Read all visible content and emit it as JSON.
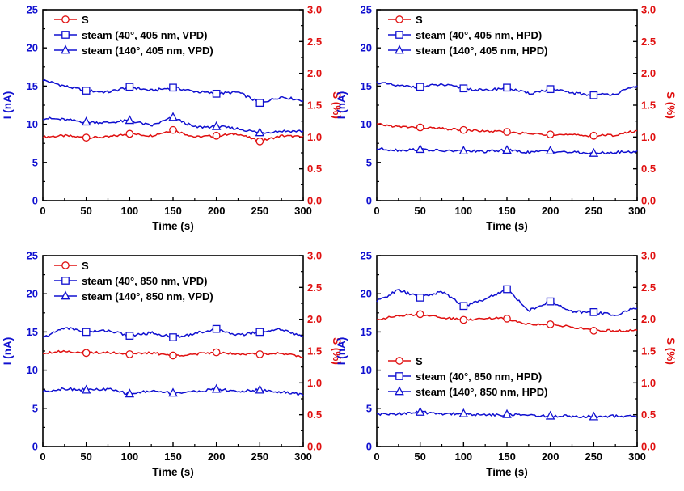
{
  "colors": {
    "axis": "#000000",
    "left_axis": "#1010d0",
    "right_axis": "#e01010",
    "red_series": "#e01010",
    "blue_series": "#1010d0"
  },
  "chart_data": [
    {
      "type": "line",
      "xlabel": "Time (s)",
      "ylabel_left": "I (nA)",
      "ylabel_right": "S (%)",
      "xlim": [
        0,
        300
      ],
      "ylim_left": [
        0,
        25
      ],
      "ylim_right": [
        0,
        3.0
      ],
      "x_ticks": [
        "0",
        "50",
        "100",
        "150",
        "200",
        "250",
        "300"
      ],
      "y_left_ticks": [
        "0",
        "5",
        "10",
        "15",
        "20",
        "25"
      ],
      "y_right_ticks": [
        "0.0",
        "0.5",
        "1.0",
        "1.5",
        "2.0",
        "2.5",
        "3.0"
      ],
      "legend_position": "top-left",
      "series": [
        {
          "name": "S",
          "axis": "right",
          "color": "#e01010",
          "marker": "circle",
          "x": [
            0,
            25,
            50,
            75,
            100,
            125,
            150,
            175,
            200,
            225,
            250,
            275,
            300
          ],
          "y": [
            1.0,
            1.02,
            0.99,
            1.0,
            1.05,
            1.02,
            1.11,
            1.0,
            1.02,
            1.05,
            0.93,
            1.02,
            1.0
          ]
        },
        {
          "name": "steam (40°, 405 nm, VPD)",
          "axis": "left",
          "color": "#1010d0",
          "marker": "square",
          "x": [
            0,
            25,
            50,
            75,
            100,
            125,
            150,
            175,
            200,
            225,
            250,
            275,
            300
          ],
          "y": [
            15.8,
            15.0,
            14.4,
            14.2,
            14.9,
            14.4,
            14.8,
            14.3,
            14.0,
            14.2,
            12.8,
            13.6,
            13.1
          ]
        },
        {
          "name": "steam (140°, 405 nm, VPD)",
          "axis": "left",
          "color": "#1010d0",
          "marker": "triangle",
          "x": [
            0,
            25,
            50,
            75,
            100,
            125,
            150,
            175,
            200,
            225,
            250,
            275,
            300
          ],
          "y": [
            10.8,
            10.6,
            10.3,
            10.2,
            10.5,
            9.8,
            10.9,
            9.6,
            9.7,
            9.4,
            8.9,
            9.1,
            9.1
          ]
        }
      ]
    },
    {
      "type": "line",
      "xlabel": "Time (s)",
      "ylabel_left": "I (nA)",
      "ylabel_right": "S (%)",
      "xlim": [
        0,
        300
      ],
      "ylim_left": [
        0,
        25
      ],
      "ylim_right": [
        0,
        3.0
      ],
      "x_ticks": [
        "0",
        "50",
        "100",
        "150",
        "200",
        "250",
        "300"
      ],
      "y_left_ticks": [
        "0",
        "5",
        "10",
        "15",
        "20",
        "25"
      ],
      "y_right_ticks": [
        "0.0",
        "0.5",
        "1.0",
        "1.5",
        "2.0",
        "2.5",
        "3.0"
      ],
      "legend_position": "top-left",
      "series": [
        {
          "name": "S",
          "axis": "right",
          "color": "#e01010",
          "marker": "circle",
          "x": [
            0,
            25,
            50,
            75,
            100,
            125,
            150,
            175,
            200,
            225,
            250,
            275,
            300
          ],
          "y": [
            1.2,
            1.16,
            1.15,
            1.13,
            1.11,
            1.09,
            1.08,
            1.05,
            1.04,
            1.03,
            1.02,
            1.03,
            1.1
          ]
        },
        {
          "name": "steam (40°, 405 nm, HPD)",
          "axis": "left",
          "color": "#1010d0",
          "marker": "square",
          "x": [
            0,
            25,
            50,
            75,
            100,
            125,
            150,
            175,
            200,
            225,
            250,
            275,
            300
          ],
          "y": [
            15.5,
            15.0,
            14.9,
            15.2,
            14.7,
            14.4,
            14.8,
            14.0,
            14.6,
            14.1,
            13.8,
            14.0,
            15.0
          ]
        },
        {
          "name": "steam (140°, 405 nm, HPD)",
          "axis": "left",
          "color": "#1010d0",
          "marker": "triangle",
          "x": [
            0,
            25,
            50,
            75,
            100,
            125,
            150,
            175,
            200,
            225,
            250,
            275,
            300
          ],
          "y": [
            6.8,
            6.6,
            6.7,
            6.5,
            6.5,
            6.4,
            6.6,
            6.3,
            6.5,
            6.3,
            6.2,
            6.3,
            6.4
          ]
        }
      ]
    },
    {
      "type": "line",
      "xlabel": "Time (s)",
      "ylabel_left": "I (nA)",
      "ylabel_right": "S (%)",
      "xlim": [
        0,
        300
      ],
      "ylim_left": [
        0,
        25
      ],
      "ylim_right": [
        0,
        3.0
      ],
      "x_ticks": [
        "0",
        "50",
        "100",
        "150",
        "200",
        "250",
        "300"
      ],
      "y_left_ticks": [
        "0",
        "5",
        "10",
        "15",
        "20",
        "25"
      ],
      "y_right_ticks": [
        "0.0",
        "0.5",
        "1.0",
        "1.5",
        "2.0",
        "2.5",
        "3.0"
      ],
      "legend_position": "top-left",
      "series": [
        {
          "name": "S",
          "axis": "right",
          "color": "#e01010",
          "marker": "circle",
          "x": [
            0,
            25,
            50,
            75,
            100,
            125,
            150,
            175,
            200,
            225,
            250,
            275,
            300
          ],
          "y": [
            1.47,
            1.5,
            1.47,
            1.48,
            1.45,
            1.47,
            1.43,
            1.45,
            1.48,
            1.46,
            1.45,
            1.47,
            1.4
          ]
        },
        {
          "name": "steam (40°, 850 nm, VPD)",
          "axis": "left",
          "color": "#1010d0",
          "marker": "square",
          "x": [
            0,
            25,
            50,
            75,
            100,
            125,
            150,
            175,
            200,
            225,
            250,
            275,
            300
          ],
          "y": [
            14.2,
            15.6,
            15.0,
            15.2,
            14.5,
            14.9,
            14.3,
            14.8,
            15.4,
            14.6,
            15.0,
            15.4,
            14.3
          ]
        },
        {
          "name": "steam (140°, 850 nm, VPD)",
          "axis": "left",
          "color": "#1010d0",
          "marker": "triangle",
          "x": [
            0,
            25,
            50,
            75,
            100,
            125,
            150,
            175,
            200,
            225,
            250,
            275,
            300
          ],
          "y": [
            7.2,
            7.6,
            7.4,
            7.5,
            6.9,
            7.3,
            7.0,
            7.2,
            7.5,
            7.2,
            7.4,
            7.1,
            6.8
          ]
        }
      ]
    },
    {
      "type": "line",
      "xlabel": "Time (s)",
      "ylabel_left": "I (nA)",
      "ylabel_right": "S (%)",
      "xlim": [
        0,
        300
      ],
      "ylim_left": [
        0,
        25
      ],
      "ylim_right": [
        0,
        3.0
      ],
      "x_ticks": [
        "0",
        "50",
        "100",
        "150",
        "200",
        "250",
        "300"
      ],
      "y_left_ticks": [
        "0",
        "5",
        "10",
        "15",
        "20",
        "25"
      ],
      "y_right_ticks": [
        "0.0",
        "0.5",
        "1.0",
        "1.5",
        "2.0",
        "2.5",
        "3.0"
      ],
      "legend_position": "center-left",
      "series": [
        {
          "name": "S",
          "axis": "right",
          "color": "#e01010",
          "marker": "circle",
          "x": [
            0,
            25,
            50,
            75,
            100,
            125,
            150,
            175,
            200,
            225,
            250,
            275,
            300
          ],
          "y": [
            2.0,
            2.05,
            2.08,
            2.03,
            1.99,
            2.02,
            2.01,
            1.92,
            1.92,
            1.88,
            1.82,
            1.82,
            1.82
          ]
        },
        {
          "name": "steam (40°, 850 nm, HPD)",
          "axis": "left",
          "color": "#1010d0",
          "marker": "square",
          "x": [
            0,
            25,
            50,
            75,
            100,
            125,
            150,
            175,
            200,
            225,
            250,
            275,
            300
          ],
          "y": [
            19.0,
            20.5,
            19.5,
            20.3,
            18.4,
            19.3,
            20.6,
            17.8,
            19.0,
            17.6,
            17.6,
            17.2,
            18.2
          ]
        },
        {
          "name": "steam (140°, 850 nm, HPD)",
          "axis": "left",
          "color": "#1010d0",
          "marker": "triangle",
          "x": [
            0,
            25,
            50,
            75,
            100,
            125,
            150,
            175,
            200,
            225,
            250,
            275,
            300
          ],
          "y": [
            4.2,
            4.3,
            4.5,
            4.3,
            4.3,
            4.1,
            4.2,
            4.1,
            4.0,
            4.0,
            3.9,
            4.0,
            3.9
          ]
        }
      ]
    }
  ]
}
